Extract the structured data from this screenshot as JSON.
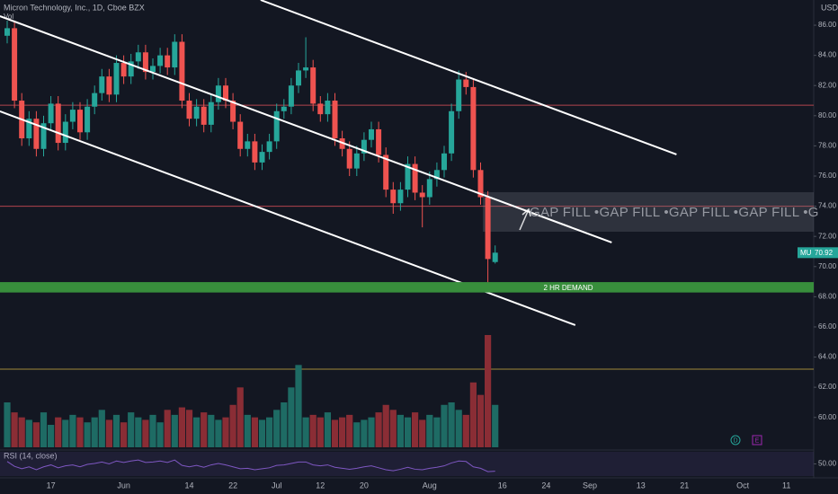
{
  "chart_data": {
    "type": "candlestick",
    "title": "Micron Technology, Inc., 1D, Cboe BZX",
    "volume_label": "Vol",
    "currency": "USD",
    "symbol": "MU",
    "up_color": "#26a69a",
    "down_color": "#ef5350",
    "categories": [
      null,
      null,
      null,
      null,
      null,
      null,
      "17",
      null,
      null,
      null,
      null,
      null,
      null,
      null,
      null,
      null,
      "Jun",
      null,
      null,
      null,
      null,
      null,
      null,
      null,
      null,
      "14",
      null,
      null,
      null,
      null,
      null,
      "22",
      null,
      null,
      null,
      null,
      null,
      "Jul",
      null,
      null,
      null,
      null,
      null,
      "12",
      null,
      null,
      null,
      null,
      null,
      "20",
      null,
      null,
      null,
      null,
      null,
      null,
      null,
      null,
      "Aug",
      null,
      null,
      null,
      null,
      null,
      null,
      null,
      null,
      null,
      "16",
      null,
      null,
      null,
      null,
      null,
      "24",
      null,
      null,
      null,
      null,
      null,
      "Sep",
      null,
      null,
      null,
      null,
      null,
      null,
      "13",
      null,
      null,
      null,
      null,
      null,
      "21",
      null,
      null,
      null,
      null,
      null,
      null,
      null,
      "Oct",
      null,
      null,
      null,
      null,
      null,
      "11",
      null
    ],
    "open": [
      85.3,
      85.8,
      81.0,
      78.5,
      79.8,
      77.8,
      79.5,
      80.8,
      78.2,
      79.6,
      80.4,
      78.9,
      80.6,
      81.5,
      82.6,
      81.4,
      83.5,
      82.6,
      83.6,
      84.2,
      82.9,
      83.3,
      84.0,
      83.2,
      84.9,
      81.0,
      79.8,
      80.6,
      79.4,
      80.9,
      82.0,
      81.0,
      79.6,
      77.8,
      78.3,
      76.9,
      77.6,
      78.3,
      80.3,
      80.6,
      82.0,
      83.0,
      83.2,
      80.8,
      80.1,
      81.0,
      78.5,
      77.8,
      76.5,
      77.5,
      78.4,
      79.1,
      77.4,
      75.1,
      74.2,
      75.1,
      76.8,
      74.9,
      74.6,
      75.8,
      76.4,
      77.5,
      80.3,
      82.4,
      81.9,
      76.4,
      74.6,
      70.3,
      null,
      null,
      null,
      null,
      null,
      null,
      null,
      null,
      null,
      null,
      null,
      null,
      null,
      null,
      null,
      null,
      null,
      null,
      null,
      null,
      null,
      null,
      null,
      null,
      null,
      null,
      null,
      null,
      null,
      null,
      null,
      null,
      null,
      null,
      null,
      null,
      null,
      null,
      null,
      null,
      null
    ],
    "high": [
      86.3,
      86.3,
      81.5,
      80.3,
      80.3,
      80.0,
      81.3,
      81.3,
      80.1,
      80.9,
      80.9,
      81.1,
      82.0,
      83.1,
      83.1,
      84.0,
      84.0,
      84.1,
      84.7,
      84.7,
      83.8,
      84.5,
      84.5,
      85.4,
      85.4,
      81.5,
      81.1,
      81.1,
      81.4,
      82.5,
      82.5,
      81.5,
      80.1,
      78.8,
      78.8,
      78.1,
      78.8,
      80.8,
      81.1,
      82.5,
      83.5,
      85.2,
      83.7,
      81.3,
      81.5,
      81.5,
      79.0,
      78.3,
      78.0,
      78.9,
      79.6,
      79.6,
      77.9,
      75.6,
      75.6,
      77.3,
      77.3,
      75.4,
      76.3,
      76.9,
      78.0,
      80.8,
      83.0,
      82.9,
      82.4,
      76.9,
      75.0,
      71.4,
      null,
      null,
      null,
      null,
      null,
      null,
      null,
      null,
      null,
      null,
      null,
      null,
      null,
      null,
      null,
      null,
      null,
      null,
      null,
      null,
      null,
      null,
      null,
      null,
      null,
      null,
      null,
      null,
      null,
      null,
      null,
      null,
      null,
      null,
      null,
      null,
      null,
      null,
      null,
      null,
      null
    ],
    "low": [
      84.8,
      80.5,
      78.0,
      78.0,
      77.3,
      77.3,
      79.0,
      77.7,
      77.7,
      79.1,
      78.4,
      78.4,
      80.1,
      81.0,
      80.9,
      80.9,
      82.1,
      82.1,
      83.1,
      82.4,
      82.4,
      82.8,
      82.7,
      82.7,
      80.5,
      79.3,
      79.3,
      78.9,
      78.9,
      80.4,
      80.5,
      79.1,
      77.3,
      77.3,
      76.4,
      76.4,
      77.1,
      77.8,
      79.8,
      80.1,
      81.5,
      82.5,
      80.3,
      79.6,
      79.6,
      78.0,
      77.3,
      76.0,
      76.0,
      77.0,
      77.9,
      76.9,
      74.6,
      73.5,
      73.7,
      74.6,
      74.4,
      72.6,
      74.1,
      75.3,
      75.9,
      77.0,
      79.8,
      81.4,
      75.9,
      74.1,
      68.7,
      70.2,
      null,
      null,
      null,
      null,
      null,
      null,
      null,
      null,
      null,
      null,
      null,
      null,
      null,
      null,
      null,
      null,
      null,
      null,
      null,
      null,
      null,
      null,
      null,
      null,
      null,
      null,
      null,
      null,
      null,
      null,
      null,
      null,
      null,
      null,
      null,
      null,
      null,
      null,
      null,
      null,
      null
    ],
    "close": [
      85.8,
      81.0,
      78.5,
      79.8,
      77.8,
      79.5,
      80.8,
      78.2,
      79.6,
      80.4,
      78.9,
      80.6,
      81.5,
      82.6,
      81.4,
      83.5,
      82.6,
      83.6,
      84.2,
      82.9,
      83.3,
      84.0,
      83.2,
      84.9,
      81.0,
      79.8,
      80.6,
      79.4,
      80.9,
      82.0,
      81.0,
      79.6,
      77.8,
      78.3,
      76.9,
      77.6,
      78.3,
      80.3,
      80.6,
      82.0,
      83.0,
      83.2,
      80.8,
      80.1,
      81.0,
      78.5,
      77.8,
      76.5,
      77.5,
      78.4,
      79.1,
      77.4,
      75.1,
      74.2,
      75.1,
      76.8,
      74.9,
      74.6,
      75.8,
      76.4,
      77.5,
      80.3,
      82.4,
      81.9,
      76.4,
      74.6,
      70.5,
      70.92,
      null,
      null,
      null,
      null,
      null,
      null,
      null,
      null,
      null,
      null,
      null,
      null,
      null,
      null,
      null,
      null,
      null,
      null,
      null,
      null,
      null,
      null,
      null,
      null,
      null,
      null,
      null,
      null,
      null,
      null,
      null,
      null,
      null,
      null,
      null,
      null,
      null,
      null,
      null,
      null,
      null
    ],
    "volume": [
      18,
      14,
      12,
      11,
      10,
      14,
      9,
      12,
      11,
      13,
      12,
      10,
      12,
      15,
      11,
      13,
      10,
      14,
      12,
      11,
      13,
      10,
      15,
      13,
      16,
      15,
      12,
      14,
      13,
      11,
      12,
      17,
      24,
      13,
      12,
      11,
      12,
      15,
      18,
      24,
      33,
      12,
      13,
      12,
      14,
      11,
      12,
      13,
      10,
      11,
      12,
      14,
      17,
      15,
      13,
      12,
      14,
      11,
      13,
      12,
      17,
      18,
      15,
      13,
      26,
      21,
      45,
      17,
      null,
      null,
      null,
      null,
      null,
      null,
      null,
      null,
      null,
      null,
      null,
      null,
      null,
      null,
      null,
      null,
      null,
      null,
      null,
      null,
      null,
      null,
      null,
      null,
      null,
      null,
      null,
      null,
      null,
      null,
      null,
      null,
      null,
      null,
      null,
      null,
      null,
      null,
      null,
      null,
      null
    ],
    "ylim": [
      57.9,
      87.67
    ],
    "yticks": [
      {
        "value": 60,
        "label": "60.00"
      },
      {
        "value": 62,
        "label": "62.00"
      },
      {
        "value": 64,
        "label": "64.00"
      },
      {
        "value": 66,
        "label": "66.00"
      },
      {
        "value": 68,
        "label": "68.00"
      },
      {
        "value": 70,
        "label": "70.00"
      },
      {
        "value": 72,
        "label": "72.00"
      },
      {
        "value": 74,
        "label": "74.00"
      },
      {
        "value": 76,
        "label": "76.00"
      },
      {
        "value": 78,
        "label": "78.00"
      },
      {
        "value": 80,
        "label": "80.00"
      },
      {
        "value": 82,
        "label": "82.00"
      },
      {
        "value": 84,
        "label": "84.00"
      },
      {
        "value": 86,
        "label": "86.00"
      }
    ],
    "levels": [
      {
        "value": 80.7,
        "color": "#b2444e"
      },
      {
        "value": 74.0,
        "color": "#b2444e"
      },
      {
        "value": 63.2,
        "color": "#a08a3a"
      }
    ],
    "demand_zone": {
      "low": 68.4,
      "high": 68.85,
      "label": "2 HR DEMAND",
      "color": "#388e3c"
    },
    "gap_box": {
      "top": 74.93,
      "bottom": 72.31,
      "label": "GAP FILL •GAP FILL •GAP FILL •GAP FILL •G"
    },
    "trendlines": [
      {
        "x": [
          34.8,
          91.9
        ],
        "y": [
          87.67,
          77.43
        ]
      },
      {
        "x": [
          -1,
          83
        ],
        "y": [
          86.6,
          71.6
        ]
      },
      {
        "x": [
          -1,
          78
        ],
        "y": [
          80.29,
          66.12
        ]
      }
    ],
    "rsi": {
      "label": "RSI (14, close)",
      "color": "#7e57c2",
      "ylim": [
        25,
        75
      ],
      "yticks": [
        {
          "value": 50,
          "label": "50.00"
        }
      ],
      "values": [
        55,
        45,
        40,
        44,
        38,
        44,
        48,
        42,
        46,
        48,
        44,
        49,
        51,
        54,
        50,
        56,
        53,
        56,
        58,
        53,
        54,
        56,
        53,
        58,
        47,
        44,
        47,
        43,
        48,
        51,
        48,
        44,
        40,
        41,
        38,
        40,
        42,
        47,
        48,
        51,
        54,
        54,
        48,
        46,
        48,
        43,
        41,
        39,
        41,
        44,
        46,
        42,
        38,
        36,
        39,
        43,
        39,
        38,
        41,
        43,
        46,
        52,
        56,
        55,
        44,
        41,
        34,
        35,
        null,
        null,
        null,
        null,
        null,
        null,
        null,
        null,
        null,
        null,
        null,
        null,
        null,
        null,
        null,
        null,
        null,
        null,
        null,
        null,
        null,
        null,
        null,
        null,
        null,
        null,
        null,
        null,
        null,
        null,
        null,
        null,
        null,
        null,
        null,
        null,
        null,
        null,
        null,
        null,
        null
      ]
    },
    "markers": [
      "D",
      "E"
    ]
  }
}
